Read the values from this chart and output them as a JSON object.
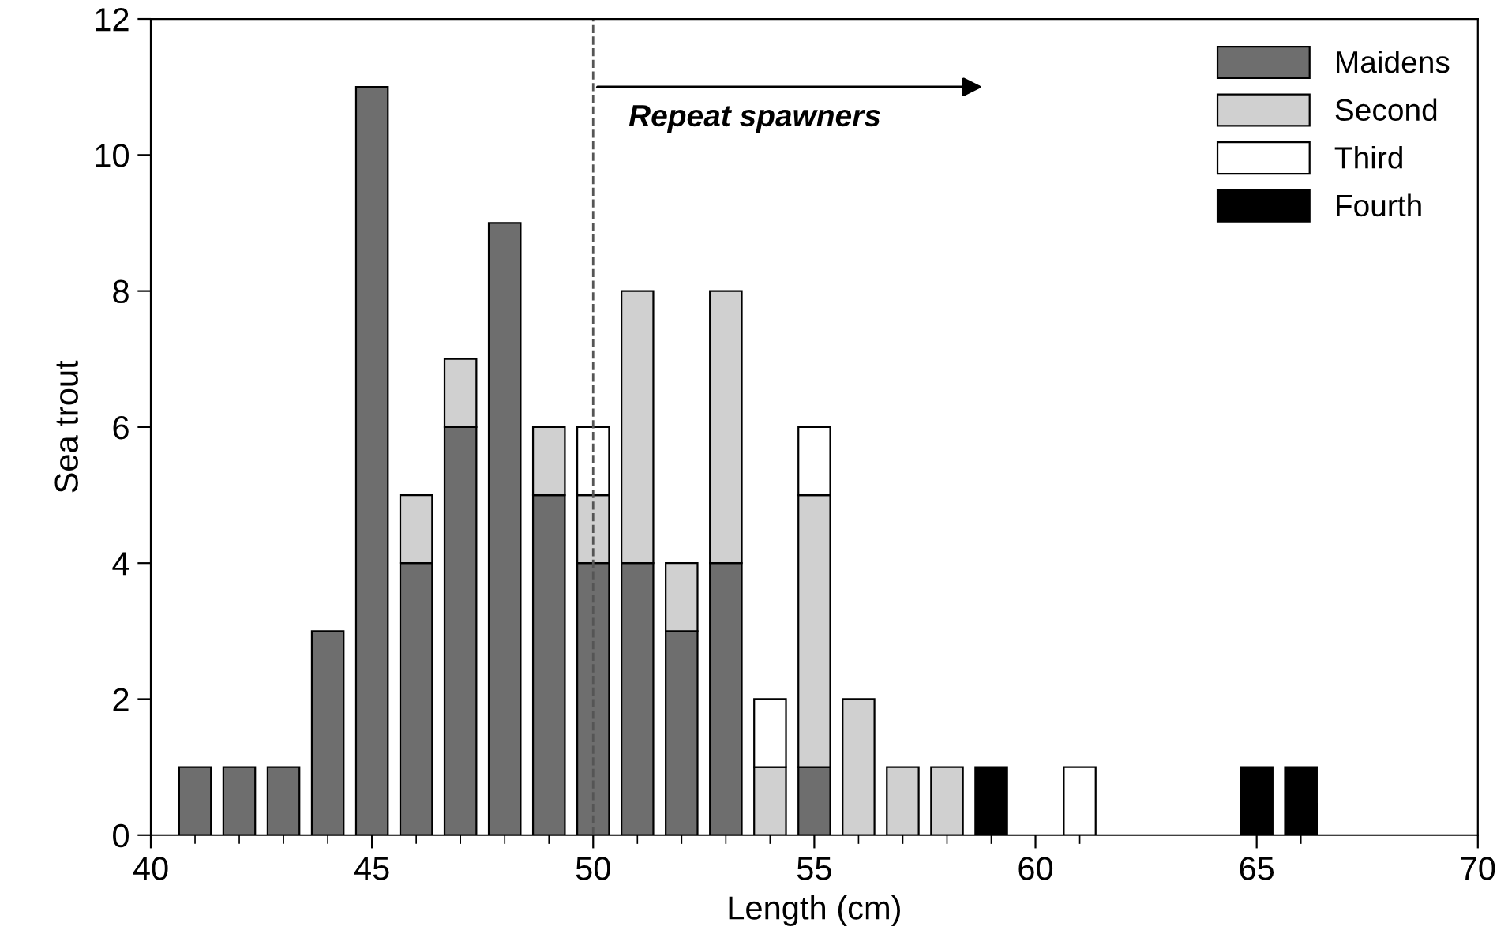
{
  "chart_data": {
    "type": "bar",
    "stacked": true,
    "xlabel": "Length (cm)",
    "ylabel": "Sea trout",
    "x": [
      41,
      42,
      43,
      44,
      45,
      46,
      47,
      48,
      49,
      50,
      51,
      52,
      53,
      54,
      55,
      56,
      57,
      58,
      59,
      61,
      65,
      66
    ],
    "series": [
      {
        "name": "Maidens",
        "color": "#6e6e6e",
        "values": [
          1,
          1,
          1,
          3,
          11,
          4,
          6,
          9,
          5,
          4,
          4,
          3,
          4,
          0,
          1,
          0,
          0,
          0,
          0,
          0,
          0,
          0
        ]
      },
      {
        "name": "Second",
        "color": "#d0d0d0",
        "values": [
          0,
          0,
          0,
          0,
          0,
          1,
          1,
          0,
          1,
          1,
          4,
          1,
          4,
          1,
          4,
          2,
          1,
          1,
          0,
          0,
          0,
          0
        ]
      },
      {
        "name": "Third",
        "color": "#ffffff",
        "values": [
          0,
          0,
          0,
          0,
          0,
          0,
          0,
          0,
          0,
          1,
          0,
          0,
          0,
          1,
          1,
          0,
          0,
          0,
          0,
          1,
          0,
          0
        ]
      },
      {
        "name": "Fourth",
        "color": "#000000",
        "values": [
          0,
          0,
          0,
          0,
          0,
          0,
          0,
          0,
          0,
          0,
          0,
          0,
          0,
          0,
          0,
          0,
          0,
          0,
          1,
          0,
          1,
          1
        ]
      }
    ],
    "xlim": [
      40,
      70
    ],
    "xticks": [
      40,
      45,
      50,
      55,
      60,
      65,
      70
    ],
    "ylim": [
      0,
      12
    ],
    "yticks": [
      0,
      2,
      4,
      6,
      8,
      10,
      12
    ],
    "ref_lines": [
      {
        "axis": "x",
        "value": 50,
        "line_style": "dashed",
        "color": "#555555"
      }
    ],
    "annotations": [
      {
        "text": "Repeat spawners",
        "x": 50,
        "y": 11
      }
    ],
    "legend": "top right",
    "grid": false
  }
}
